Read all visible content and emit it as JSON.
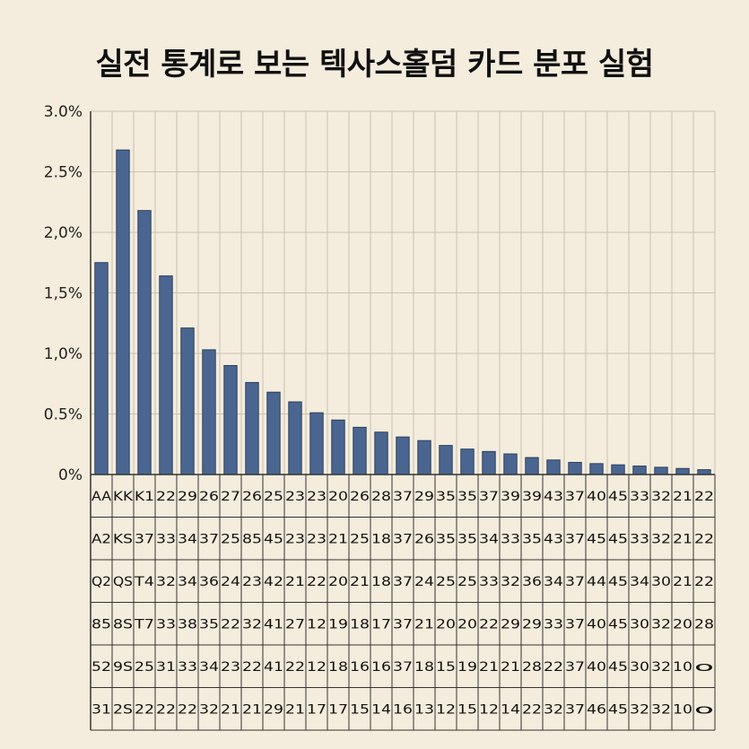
{
  "title": "실전 통계로 보는 텍사스홀덤 카드 분포 실험",
  "chart_data": {
    "type": "bar",
    "title": "실전 통계로 보는 텍사스홀덤 카드 분포 실험",
    "ylim": [
      0,
      3.0
    ],
    "y_tick_labels": [
      "0%",
      "0.5%",
      "1,0%",
      "1,5%",
      "2,0%",
      "2.5%",
      "3.0%"
    ],
    "y_tick_values": [
      0,
      0.5,
      1.0,
      1.5,
      2.0,
      2.5,
      3.0
    ],
    "grid": true,
    "values": [
      1.75,
      2.68,
      2.18,
      1.64,
      1.21,
      1.03,
      0.9,
      0.76,
      0.68,
      0.6,
      0.51,
      0.45,
      0.39,
      0.35,
      0.31,
      0.28,
      0.24,
      0.21,
      0.19,
      0.17,
      0.14,
      0.12,
      0.1,
      0.09,
      0.08,
      0.07,
      0.06,
      0.05,
      0.04
    ],
    "colors": {
      "bar": "#4a6690",
      "bar_edge": "#2a3f5e",
      "grid": "#c9c1b1",
      "axis": "#333333"
    },
    "table_rows": [
      [
        "AA",
        "KK",
        "K1",
        "22",
        "29",
        "26",
        "27",
        "26",
        "25",
        "23",
        "23",
        "20",
        "26",
        "28",
        "37",
        "29",
        "35",
        "35",
        "37",
        "39",
        "39",
        "43",
        "37",
        "40",
        "45",
        "33",
        "32",
        "21",
        "22"
      ],
      [
        "A2",
        "KS",
        "37",
        "33",
        "34",
        "37",
        "25",
        "85",
        "45",
        "23",
        "23",
        "21",
        "25",
        "18",
        "37",
        "26",
        "35",
        "35",
        "34",
        "33",
        "35",
        "43",
        "37",
        "45",
        "45",
        "33",
        "32",
        "21",
        "22"
      ],
      [
        "Q2",
        "QS",
        "T4",
        "32",
        "34",
        "36",
        "24",
        "23",
        "42",
        "21",
        "22",
        "20",
        "21",
        "18",
        "37",
        "24",
        "25",
        "25",
        "33",
        "32",
        "36",
        "34",
        "37",
        "44",
        "45",
        "34",
        "30",
        "21",
        "22"
      ],
      [
        "85",
        "8S",
        "T7",
        "33",
        "38",
        "35",
        "22",
        "32",
        "41",
        "27",
        "12",
        "19",
        "18",
        "17",
        "37",
        "21",
        "20",
        "20",
        "22",
        "29",
        "29",
        "33",
        "37",
        "40",
        "45",
        "30",
        "32",
        "20",
        "28"
      ],
      [
        "52",
        "9S",
        "25",
        "31",
        "33",
        "34",
        "23",
        "22",
        "41",
        "22",
        "12",
        "18",
        "16",
        "16",
        "37",
        "18",
        "15",
        "19",
        "21",
        "21",
        "28",
        "22",
        "37",
        "40",
        "45",
        "30",
        "32",
        "10",
        "o"
      ],
      [
        "31",
        "2S",
        "22",
        "22",
        "22",
        "32",
        "21",
        "21",
        "29",
        "21",
        "17",
        "17",
        "15",
        "14",
        "16",
        "13",
        "12",
        "15",
        "12",
        "14",
        "22",
        "32",
        "37",
        "46",
        "45",
        "32",
        "32",
        "10",
        "o"
      ]
    ]
  }
}
